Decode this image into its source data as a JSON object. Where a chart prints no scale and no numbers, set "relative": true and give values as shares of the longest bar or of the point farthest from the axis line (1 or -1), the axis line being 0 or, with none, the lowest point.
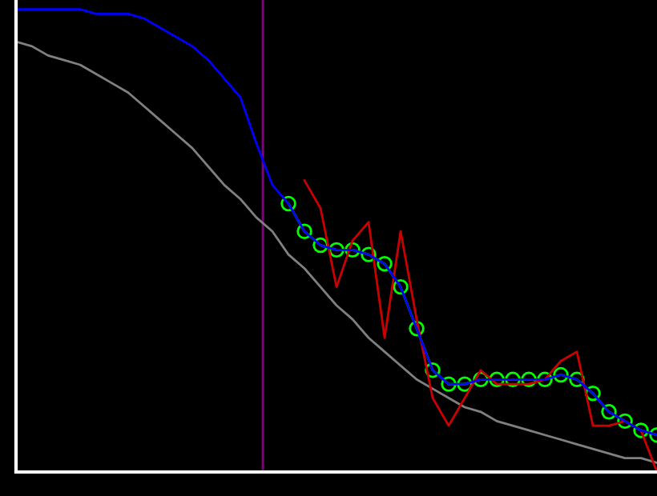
{
  "chart_data": {
    "type": "line",
    "relative": true,
    "categories": [
      null,
      null,
      null,
      null,
      null,
      null,
      null,
      null,
      null,
      null,
      null,
      null,
      null,
      null,
      null,
      null,
      null,
      null,
      null,
      null,
      null,
      null,
      null,
      null,
      null,
      null,
      null,
      null,
      null,
      null,
      null,
      null,
      null,
      null,
      null,
      null,
      null,
      null,
      null,
      null,
      null
    ],
    "series": [
      {
        "color": "#808080",
        "values": [
          0.93,
          0.92,
          0.9,
          0.89,
          0.88,
          0.86,
          0.84,
          0.82,
          0.79,
          0.76,
          0.73,
          0.7,
          0.66,
          0.62,
          0.59,
          0.55,
          0.52,
          0.47,
          0.44,
          0.4,
          0.36,
          0.33,
          0.29,
          0.26,
          0.23,
          0.2,
          0.18,
          0.16,
          0.14,
          0.13,
          0.11,
          0.1,
          0.09,
          0.08,
          0.07,
          0.06,
          0.05,
          0.04,
          0.03,
          0.03,
          0.02
        ]
      },
      {
        "color": "#cc0000",
        "values": [
          null,
          null,
          null,
          null,
          null,
          null,
          null,
          null,
          null,
          null,
          null,
          null,
          null,
          null,
          null,
          null,
          null,
          null,
          0.63,
          0.57,
          0.4,
          0.5,
          0.54,
          0.29,
          0.52,
          0.33,
          0.16,
          0.1,
          0.16,
          0.22,
          0.19,
          0.19,
          0.19,
          0.2,
          0.24,
          0.26,
          0.1,
          0.1,
          0.11,
          0.09,
          0.0
        ]
      },
      {
        "color": "#0000ff",
        "values": [
          1.0,
          1.0,
          1.0,
          1.0,
          1.0,
          0.99,
          0.99,
          0.99,
          0.98,
          0.96,
          0.94,
          0.92,
          0.89,
          0.85,
          0.81,
          0.71,
          0.62,
          0.58,
          0.52,
          0.49,
          0.48,
          0.48,
          0.47,
          0.45,
          0.4,
          0.31,
          0.22,
          0.19,
          0.19,
          0.2,
          0.2,
          0.2,
          0.2,
          0.2,
          0.21,
          0.2,
          0.17,
          0.13,
          0.11,
          0.09,
          0.08
        ]
      },
      {
        "color": "#00ff00",
        "marker": "circle",
        "values": [
          null,
          null,
          null,
          null,
          null,
          null,
          null,
          null,
          null,
          null,
          null,
          null,
          null,
          null,
          null,
          null,
          null,
          0.58,
          0.52,
          0.49,
          0.48,
          0.48,
          0.47,
          0.45,
          0.4,
          0.31,
          0.22,
          0.19,
          0.19,
          0.2,
          0.2,
          0.2,
          0.2,
          0.2,
          0.21,
          0.2,
          0.17,
          0.13,
          0.11,
          0.09,
          0.08
        ]
      }
    ],
    "grid": false,
    "legend": false
  }
}
